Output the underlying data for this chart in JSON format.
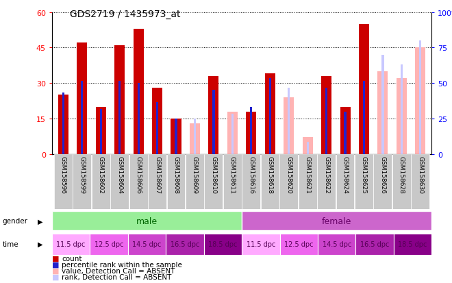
{
  "title": "GDS2719 / 1435973_at",
  "samples": [
    "GSM158596",
    "GSM158599",
    "GSM158602",
    "GSM158604",
    "GSM158606",
    "GSM158607",
    "GSM158608",
    "GSM158609",
    "GSM158610",
    "GSM158611",
    "GSM158616",
    "GSM158618",
    "GSM158620",
    "GSM158621",
    "GSM158622",
    "GSM158624",
    "GSM158625",
    "GSM158626",
    "GSM158628",
    "GSM158630"
  ],
  "count_values": [
    25,
    47,
    20,
    46,
    53,
    28,
    15,
    0,
    33,
    0,
    18,
    34,
    0,
    0,
    33,
    20,
    55,
    0,
    0,
    0
  ],
  "percentile_values": [
    26,
    31,
    19,
    31,
    30,
    22,
    15,
    0,
    27,
    0,
    20,
    32,
    0,
    2,
    28,
    18,
    31,
    0,
    0,
    0
  ],
  "absent_value_values": [
    0,
    0,
    0,
    0,
    0,
    0,
    0,
    13,
    0,
    18,
    0,
    0,
    24,
    7,
    0,
    0,
    0,
    35,
    32,
    45
  ],
  "absent_rank_values": [
    0,
    0,
    0,
    0,
    0,
    0,
    0,
    15,
    0,
    17,
    0,
    0,
    28,
    5,
    0,
    0,
    0,
    42,
    38,
    48
  ],
  "ylim_left": [
    0,
    60
  ],
  "ylim_right": [
    0,
    100
  ],
  "yticks_left": [
    0,
    15,
    30,
    45,
    60
  ],
  "yticks_right": [
    0,
    25,
    50,
    75,
    100
  ],
  "count_color": "#cc0000",
  "percentile_color": "#2222cc",
  "absent_value_color": "#ffb3b3",
  "absent_rank_color": "#c8c8ff",
  "gender_male_color": "#99ee99",
  "gender_female_color": "#cc66cc",
  "time_colors": [
    "#ffaaff",
    "#ee77ee",
    "#dd55dd",
    "#cc33cc",
    "#bb00bb",
    "#ffaaff",
    "#ee77ee",
    "#dd55dd",
    "#cc33cc",
    "#bb00bb"
  ],
  "time_labels": [
    "11.5 dpc",
    "12.5 dpc",
    "14.5 dpc",
    "16.5 dpc",
    "18.5 dpc",
    "11.5 dpc",
    "12.5 dpc",
    "14.5 dpc",
    "16.5 dpc",
    "18.5 dpc"
  ],
  "xtick_bg": "#c8c8c8"
}
